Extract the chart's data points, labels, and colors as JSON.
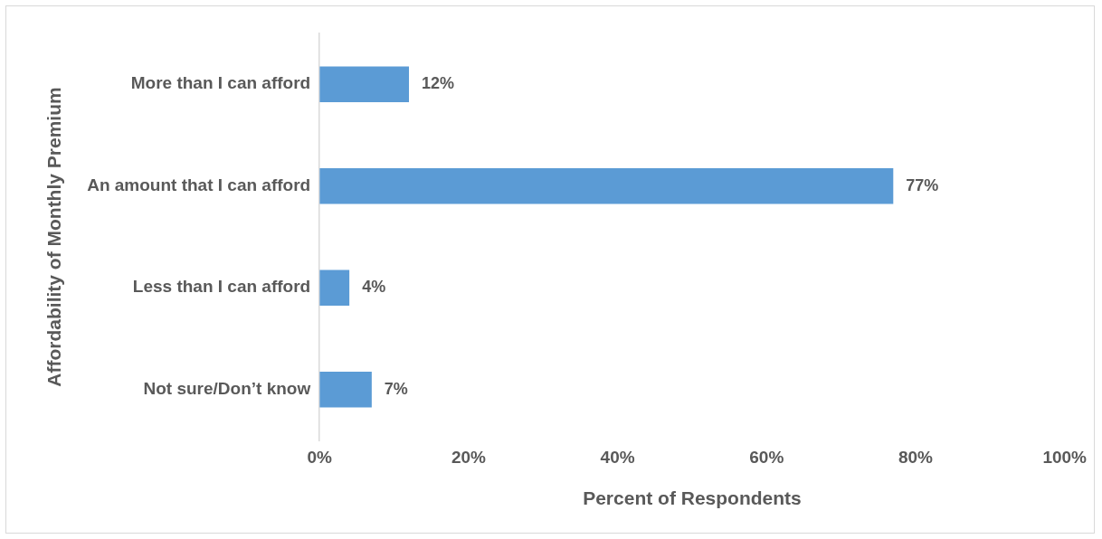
{
  "chart_data": {
    "type": "bar",
    "orientation": "horizontal",
    "xlabel": "Percent of Respondents",
    "ylabel": "Affordability of Monthly Premium",
    "categories": [
      "More than I can afford",
      "An amount that I can afford",
      "Less than I can afford",
      "Not sure/Don’t know"
    ],
    "values": [
      12,
      77,
      4,
      7
    ],
    "color": "#5b9bd5",
    "value_labels": [
      "12%",
      "77%",
      "4%",
      "7%"
    ],
    "xlim": [
      0,
      100
    ],
    "xticks": [
      {
        "value": 0,
        "label": "0%"
      },
      {
        "value": 20,
        "label": "20%"
      },
      {
        "value": 40,
        "label": "40%"
      },
      {
        "value": 60,
        "label": "60%"
      },
      {
        "value": 80,
        "label": "80%"
      },
      {
        "value": 100,
        "label": "100%"
      }
    ],
    "grid": false,
    "legend": false
  }
}
